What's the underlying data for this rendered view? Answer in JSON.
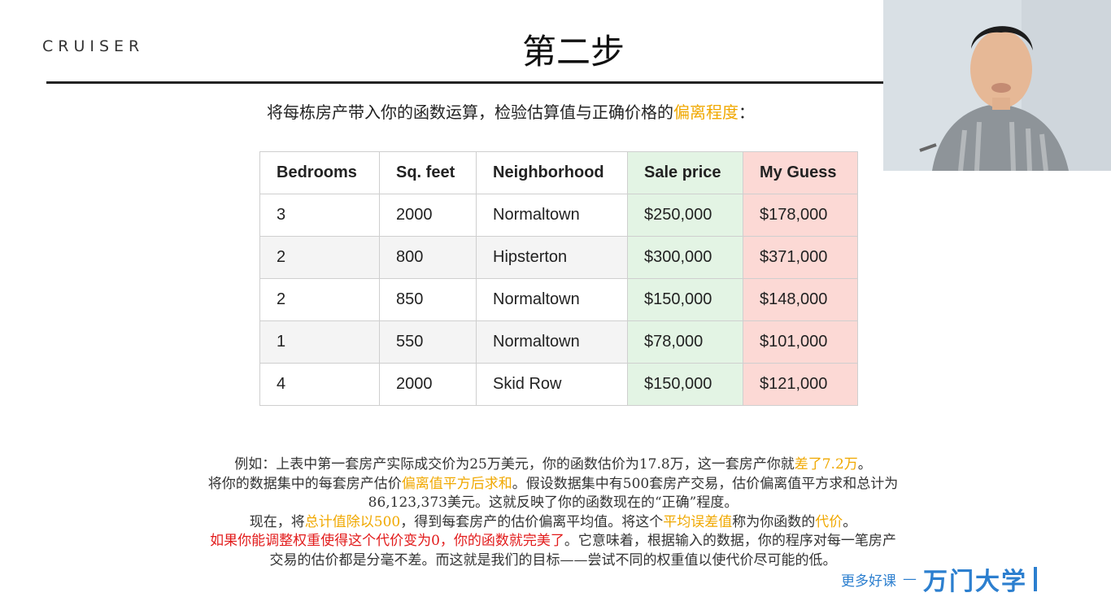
{
  "logo": {
    "text": "CRUISER"
  },
  "slide": {
    "title": "第二步",
    "subtitle_pre": "将每栋房产带入你的函数运算，检验估算值与正确价格的",
    "subtitle_hl": "偏离程度",
    "subtitle_post": "："
  },
  "table": {
    "headers": [
      "Bedrooms",
      "Sq. feet",
      "Neighborhood",
      "Sale price",
      "My Guess"
    ],
    "rows": [
      [
        "3",
        "2000",
        "Normaltown",
        "$250,000",
        "$178,000"
      ],
      [
        "2",
        "800",
        "Hipsterton",
        "$300,000",
        "$371,000"
      ],
      [
        "2",
        "850",
        "Normaltown",
        "$150,000",
        "$148,000"
      ],
      [
        "1",
        "550",
        "Normaltown",
        "$78,000",
        "$101,000"
      ],
      [
        "4",
        "2000",
        "Skid Row",
        "$150,000",
        "$121,000"
      ]
    ]
  },
  "paragraph": {
    "l1_a": "例如：上表中第一套房产实际成交价为25万美元，你的函数估价为17.8万，这一套房产你就",
    "l1_hl": "差了7.2万",
    "l1_b": "。",
    "l2_a": "将你的数据集中的每套房产估价",
    "l2_hl": "偏离值平方后求和",
    "l2_b": "。假设数据集中有500套房产交易，估价偏离值平方求和总计为",
    "l3": "86,123,373美元。这就反映了你的函数现在的“正确”程度。",
    "l4_a": "现在，将",
    "l4_hl1": "总计值除以500",
    "l4_b": "，得到每套房产的估价偏离平均值。将这个",
    "l4_hl2": "平均误差值",
    "l4_c": "称为你函数的",
    "l4_hl3": "代价",
    "l4_d": "。",
    "l5_red": "如果你能调整权重使得这个代价变为0，你的函数就完美了",
    "l5_b": "。它意味着，根据输入的数据，你的程序对每一笔房产",
    "l6": "交易的估价都是分毫不差。而这就是我们的目标——尝试不同的权重值以使代价尽可能的低。"
  },
  "footer": {
    "more": "更多好课",
    "dash": "—",
    "brand": "万门大学"
  },
  "colors": {
    "highlight": "#f0a800",
    "emphasis_red": "#e21b1b",
    "sale_price_bg": "#e3f4e4",
    "guess_bg": "#fcd9d5",
    "brand_blue": "#2c7fcf"
  },
  "icons": [
    "presenter-webcam-video"
  ]
}
